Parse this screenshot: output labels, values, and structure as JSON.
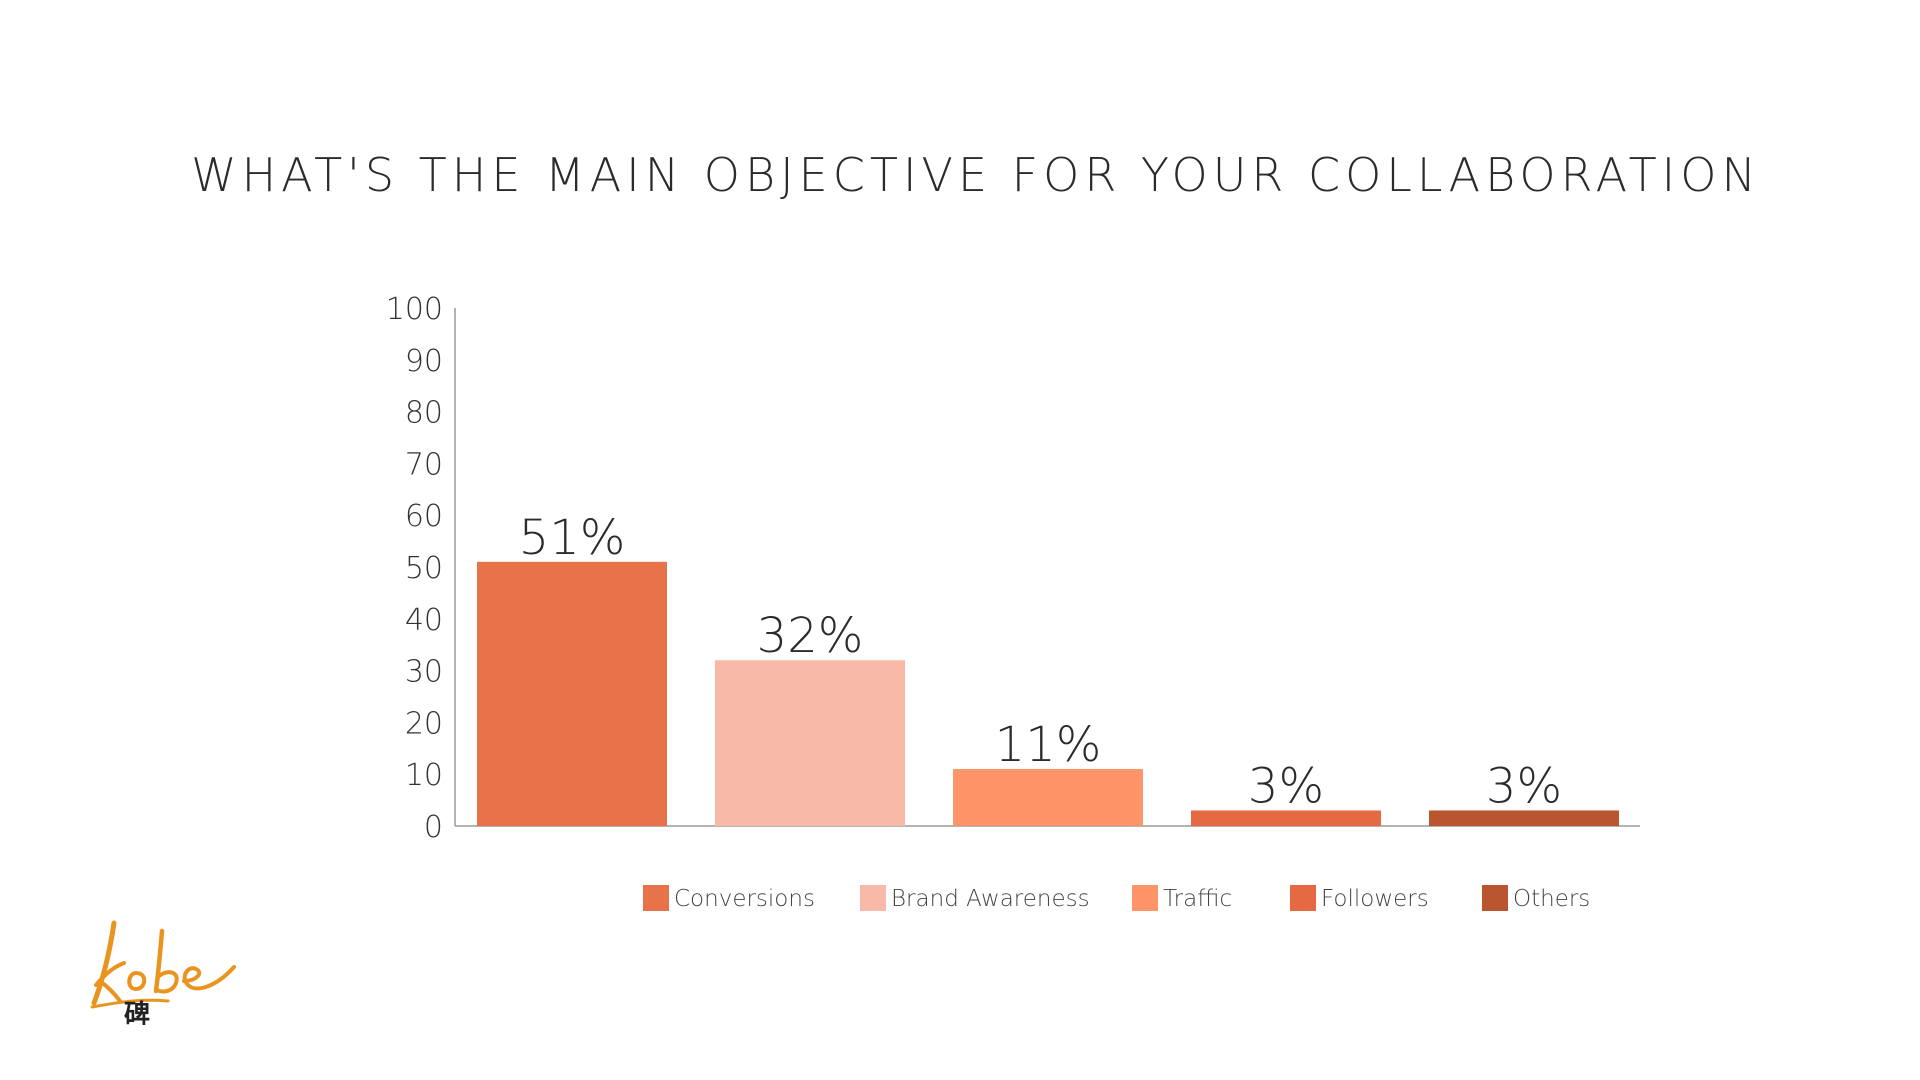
{
  "chart_data": {
    "type": "bar",
    "title": "WHAT'S THE MAIN OBJECTIVE FOR YOUR COLLABORATION",
    "xlabel": "",
    "ylabel": "",
    "categories": [
      "Conversions",
      "Brand Awareness",
      "Traffic",
      "Followers",
      "Others"
    ],
    "values": [
      51,
      32,
      11,
      3,
      3
    ],
    "data_labels": [
      "51%",
      "32%",
      "11%",
      "3%",
      "3%"
    ],
    "colors": [
      "#E8734A",
      "#F8B9A9",
      "#FE9467",
      "#E56A44",
      "#B9552F"
    ],
    "ylim": [
      0,
      100
    ],
    "yticks": [
      0,
      10,
      20,
      30,
      40,
      50,
      60,
      70,
      80,
      90,
      100
    ],
    "grid": false,
    "legend": {
      "placement": "bottom-center",
      "entries": [
        "Conversions",
        "Brand Awareness",
        "Traffic",
        "Followers",
        "Others"
      ]
    }
  },
  "logo": {
    "text": "kobe 碑",
    "color": "#E8941F"
  }
}
